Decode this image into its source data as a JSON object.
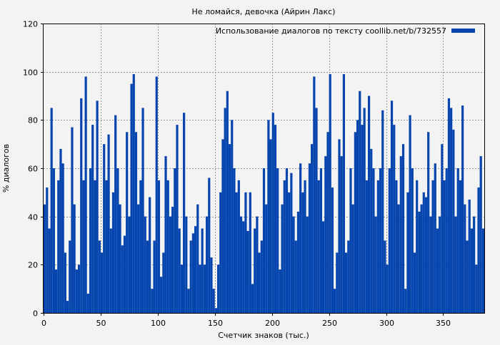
{
  "chart_data": {
    "type": "bar",
    "title": "Не ломайся, девочка (Айрин Лакс)",
    "xlabel": "Счетчик знаков (тыс.)",
    "ylabel": "% диалогов",
    "legend": {
      "label": "Использование диалогов по тексту coollib.net/b/732557",
      "placement": "top-right"
    },
    "xlim": [
      0,
      386
    ],
    "ylim": [
      0,
      120
    ],
    "xticks": [
      0,
      50,
      100,
      150,
      200,
      250,
      300,
      350
    ],
    "yticks": [
      0,
      20,
      40,
      60,
      80,
      100,
      120
    ],
    "grid": true,
    "bar_step": 2,
    "series_color": "#0645ad",
    "values": [
      45,
      52,
      35,
      85,
      60,
      18,
      55,
      68,
      62,
      25,
      5,
      30,
      77,
      45,
      18,
      20,
      89,
      55,
      98,
      8,
      60,
      78,
      55,
      88,
      30,
      25,
      70,
      55,
      74,
      35,
      50,
      82,
      60,
      45,
      28,
      32,
      75,
      40,
      95,
      99,
      75,
      45,
      55,
      85,
      40,
      30,
      48,
      10,
      30,
      98,
      55,
      15,
      25,
      65,
      55,
      40,
      44,
      60,
      78,
      35,
      20,
      83,
      40,
      10,
      30,
      33,
      36,
      45,
      20,
      35,
      20,
      40,
      56,
      23,
      10,
      2,
      20,
      50,
      72,
      85,
      92,
      70,
      80,
      60,
      50,
      55,
      40,
      38,
      50,
      34,
      50,
      12,
      35,
      40,
      25,
      30,
      60,
      45,
      80,
      72,
      83,
      78,
      60,
      18,
      45,
      55,
      60,
      50,
      58,
      40,
      30,
      42,
      62,
      50,
      55,
      40,
      62,
      70,
      98,
      85,
      55,
      60,
      38,
      65,
      75,
      99,
      52,
      10,
      25,
      72,
      65,
      99,
      25,
      30,
      60,
      45,
      75,
      80,
      92,
      78,
      85,
      55,
      90,
      68,
      60,
      40,
      55,
      60,
      84,
      30,
      20,
      60,
      88,
      78,
      55,
      45,
      65,
      70,
      10,
      50,
      82,
      60,
      25,
      55,
      42,
      45,
      50,
      48,
      75,
      40,
      55,
      62,
      35,
      40,
      70,
      55,
      60,
      89,
      85,
      76,
      40,
      60,
      55,
      86,
      45,
      30,
      47,
      35,
      40,
      20,
      52,
      65,
      35
    ]
  }
}
